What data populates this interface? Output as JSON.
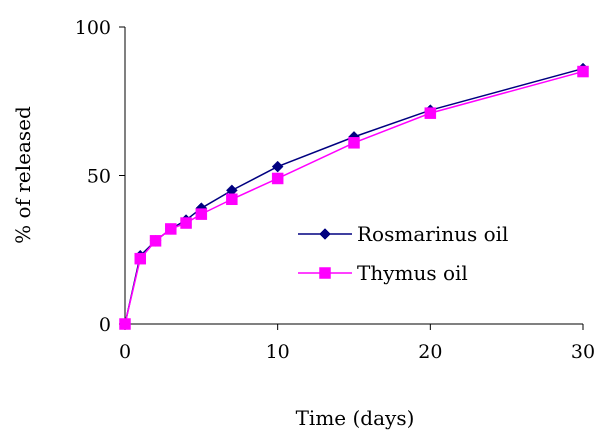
{
  "chart_data": {
    "type": "line",
    "title": "",
    "xlabel": "Time (days)",
    "ylabel": "% of released",
    "xlim": [
      0,
      30
    ],
    "ylim": [
      0,
      100
    ],
    "xticks": [
      0,
      10,
      20,
      30
    ],
    "yticks": [
      0,
      50,
      100
    ],
    "grid": false,
    "legend_position": "center-right",
    "series": [
      {
        "name": "Rosmarinus oil",
        "marker": "diamond",
        "color": "#000080",
        "x": [
          0,
          1,
          2,
          3,
          4,
          5,
          7,
          10,
          15,
          20,
          30
        ],
        "y": [
          0,
          23,
          28,
          32,
          35,
          39,
          45,
          53,
          63,
          72,
          86
        ]
      },
      {
        "name": "Thymus oil",
        "marker": "square",
        "color": "#ff00ff",
        "x": [
          0,
          1,
          2,
          3,
          4,
          5,
          7,
          10,
          15,
          20,
          30
        ],
        "y": [
          0,
          22,
          28,
          32,
          34,
          37,
          42,
          49,
          61,
          71,
          85
        ]
      }
    ]
  }
}
